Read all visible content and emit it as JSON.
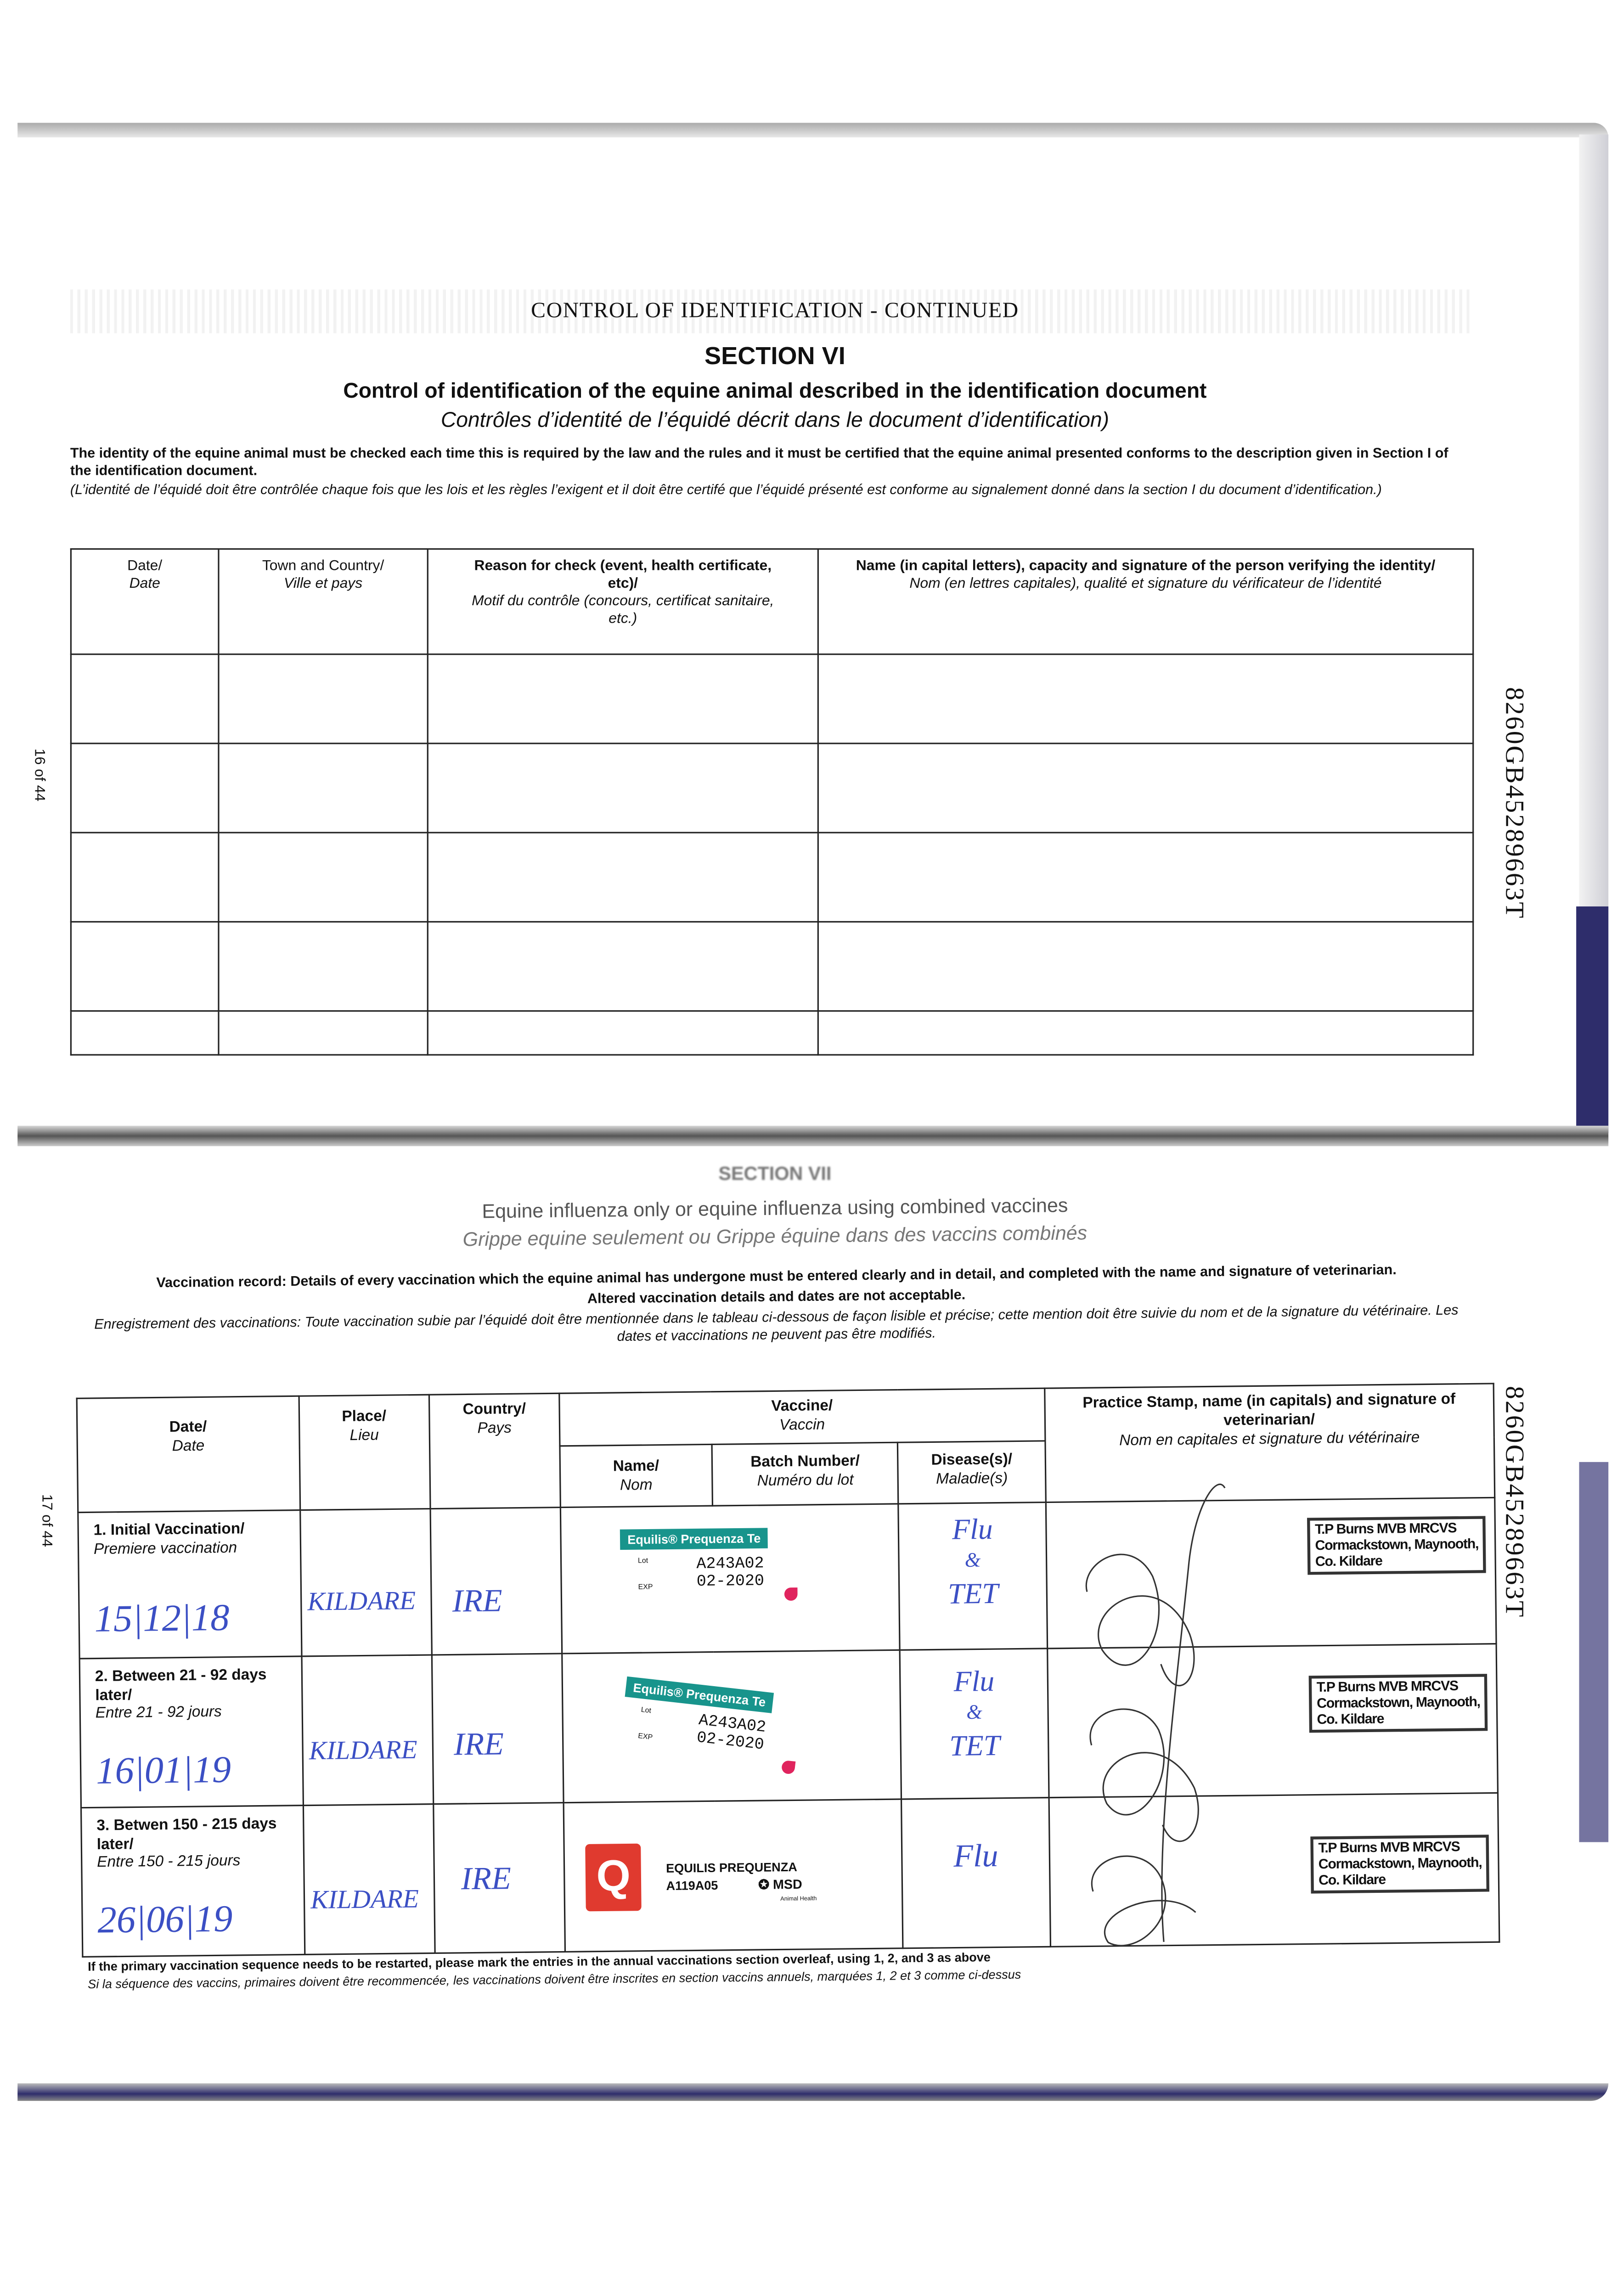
{
  "page_top": {
    "header": "CONTROL OF IDENTIFICATION - CONTINUED",
    "section": "SECTION VI",
    "title_en": "Control of identification of the equine animal described in the identification document",
    "title_fr": "Contrôles d’identité de l’équidé décrit dans le document d’identification)",
    "intro_en": "The identity of the equine animal must be checked each time this is required by the law and the rules and it must be certified that the equine animal presented conforms to the description given in Section I of the identification document.",
    "intro_fr": "(L’identité de l’équidé doit être contrôlée chaque fois que les lois et les règles l’exigent et il doit être certifé que l’équidé présenté est conforme au signalement donné dans la section I du document d’identification.)",
    "page_number": "16 of 44",
    "serial": "8260GB45289663T",
    "table": {
      "headers": [
        {
          "en": "Date/",
          "fr": "Date"
        },
        {
          "en": "Town and Country/",
          "fr": "Ville et pays"
        },
        {
          "en": "Reason for check (event, health certificate, etc)/",
          "fr": "Motif du contrôle (concours, certificat sanitaire, etc.)"
        },
        {
          "en": "Name (in capital letters), capacity and signature of the person verifying the identity/",
          "fr": "Nom (en lettres capitales), qualité et signature du vérificateur de l’identité"
        }
      ]
    }
  },
  "page_bottom": {
    "section": "SECTION VII",
    "title_en": "Equine influenza only or equine influenza using combined vaccines",
    "title_fr": "Grippe equine seulement ou Grippe équine dans des vaccins combinés",
    "intro_en": "Vaccination record: Details of every vaccination which the equine animal has undergone must be entered clearly and in detail, and completed with the name and signature of veterinarian.",
    "intro_en2": "Altered vaccination details and dates are not acceptable.",
    "intro_fr": "Enregistrement des vaccinations: Toute vaccination subie par l’équidé doit être mentionnée dans le tableau ci-dessous de façon lisible et précise; cette mention doit être suivie du nom et de la signature du vétérinaire. Les dates et vaccinations ne peuvent pas être modifiés.",
    "page_number": "17 of 44",
    "serial": "8260GB45289663T",
    "headers": {
      "date": {
        "en": "Date/",
        "fr": "Date"
      },
      "place": {
        "en": "Place/",
        "fr": "Lieu"
      },
      "country": {
        "en": "Country/",
        "fr": "Pays"
      },
      "vaccine": {
        "en": "Vaccine/",
        "fr": "Vaccin"
      },
      "name": {
        "en": "Name/",
        "fr": "Nom"
      },
      "batch": {
        "en": "Batch Number/",
        "fr": "Numéro du lot"
      },
      "disease": {
        "en": "Disease(s)/",
        "fr": "Maladie(s)"
      },
      "vet": {
        "en": "Practice Stamp, name (in capitals) and signature of veterinarian/",
        "fr": "Nom en capitales et signature du vétérinaire"
      }
    },
    "rows": [
      {
        "label_en": "1. Initial Vaccination/",
        "label_fr": "Premiere vaccination",
        "date": "15|12|18",
        "place": "KILDARE",
        "country": "IRE",
        "sticker_brand": "Equilis® Prequenza Te",
        "sticker_lot_label": "Lot",
        "sticker_exp_label": "EXP",
        "batch": "A243A02",
        "expiry": "02-2020",
        "disease1": "Flu",
        "disease_and": "&",
        "disease2": "TET",
        "stamp": [
          "T.P Burns MVB MRCVS",
          "Cormackstown, Maynooth,",
          "Co. Kildare"
        ]
      },
      {
        "label_en": "2. Between 21 - 92 days later/",
        "label_fr": "Entre 21 - 92 jours",
        "date": "16|01|19",
        "place": "KILDARE",
        "country": "IRE",
        "sticker_brand": "Equilis® Prequenza Te",
        "sticker_lot_label": "Lot",
        "sticker_exp_label": "EXP",
        "batch": "A243A02",
        "expiry": "02-2020",
        "disease1": "Flu",
        "disease_and": "&",
        "disease2": "TET",
        "stamp": [
          "T.P Burns MVB MRCVS",
          "Cormackstown, Maynooth,",
          "Co. Kildare"
        ]
      },
      {
        "label_en": "3. Betwen 150 - 215 days later/",
        "label_fr": "Entre 150 - 215 jours",
        "date": "26|06|19",
        "place": "KILDARE",
        "country": "IRE",
        "sticker_logo": "Q",
        "sticker_name": "EQUILIS PREQUENZA",
        "batch": "A119A05",
        "maker": "MSD",
        "maker_sub": "Animal Health",
        "disease1": "Flu",
        "stamp": [
          "T.P Burns MVB MRCVS",
          "Cormackstown, Maynooth,",
          "Co. Kildare"
        ]
      }
    ],
    "footnote_en": "If the primary vaccination sequence needs to be restarted, please mark the entries in the annual vaccinations section overleaf, using 1, 2, and 3 as above",
    "footnote_fr": "Si la séquence des vaccins, primaires doivent être recommencée, les vaccinations doivent être inscrites en section vaccins annuels, marquées 1, 2 et 3 comme ci-dessus"
  },
  "colors": {
    "ink_blue": "#3b4fc4",
    "teal_label": "#18948c",
    "red_logo": "#e03a2f",
    "cover_navy": "#2e2d6b"
  }
}
